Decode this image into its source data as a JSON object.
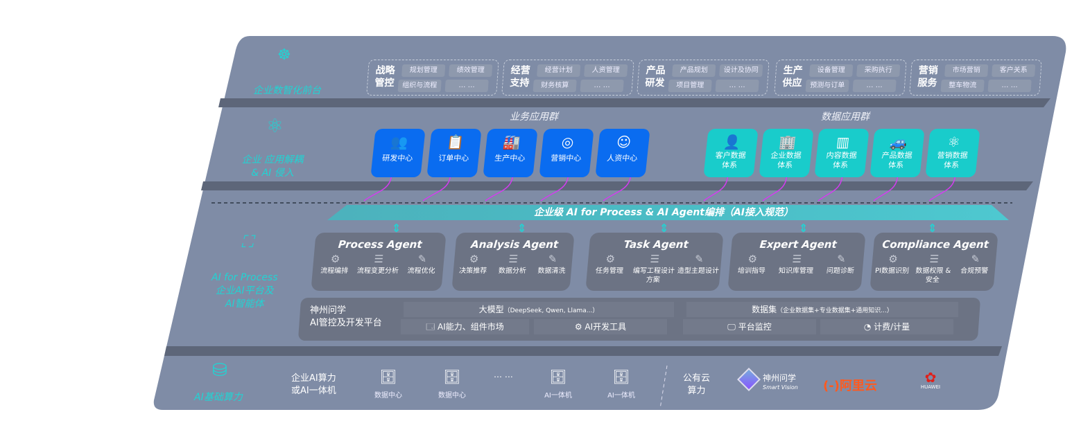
{
  "layers": {
    "front": "企业数智化前台",
    "apps": "企业 应用解耦 & AI 侵入",
    "ai": {
      "l1": "AI for Process",
      "l2": "企业AI平台及",
      "l3": "AI智能体"
    },
    "infra": "AI基础算力"
  },
  "front_groups": [
    {
      "title": "战略管控",
      "items": [
        "规划管理",
        "绩效管理",
        "组织与流程",
        "… …"
      ]
    },
    {
      "title": "经营支持",
      "items": [
        "经营计划",
        "人资管理",
        "财务核算",
        "… …"
      ]
    },
    {
      "title": "产品研发",
      "items": [
        "产品规划",
        "设计及协同",
        "项目管理",
        "… …"
      ]
    },
    {
      "title": "生产供应",
      "items": [
        "设备管理",
        "采购执行",
        "预测与订单",
        "… …"
      ]
    },
    {
      "title": "营销服务",
      "items": [
        "市场营销",
        "客户关系",
        "整车物流",
        "… …"
      ]
    }
  ],
  "business_apps": {
    "title": "业务应用群",
    "items": [
      {
        "label": "研发中心",
        "icon": "users-icon"
      },
      {
        "label": "订单中心",
        "icon": "clipboard-icon"
      },
      {
        "label": "生产中心",
        "icon": "factory-icon"
      },
      {
        "label": "营销中心",
        "icon": "target-icon"
      },
      {
        "label": "人资中心",
        "icon": "person-icon"
      }
    ]
  },
  "data_apps": {
    "title": "数据应用群",
    "items": [
      {
        "l1": "客户数据",
        "l2": "体系",
        "icon": "user-icon"
      },
      {
        "l1": "企业数据",
        "l2": "体系",
        "icon": "building-icon"
      },
      {
        "l1": "内容数据",
        "l2": "体系",
        "icon": "books-icon"
      },
      {
        "l1": "产品数据",
        "l2": "体系",
        "icon": "car-icon"
      },
      {
        "l1": "营销数据",
        "l2": "体系",
        "icon": "atom-icon"
      }
    ]
  },
  "banner": "企业级 AI for Process & AI Agent编排（AI接入规范）",
  "agents": [
    {
      "name": "Process Agent",
      "items": [
        "流程编排",
        "流程变更分析",
        "流程优化"
      ]
    },
    {
      "name": "Analysis Agent",
      "items": [
        "决策推荐",
        "数据分析",
        "数据清洗"
      ]
    },
    {
      "name": "Task Agent",
      "items": [
        "任务管理",
        "编写工程设计方案",
        "造型主题设计"
      ]
    },
    {
      "name": "Expert Agent",
      "items": [
        "培训指导",
        "知识库管理",
        "问题诊断"
      ]
    },
    {
      "name": "Compliance Agent",
      "items": [
        "PI数据识别",
        "数据权限 & 安全",
        "合规预警"
      ]
    }
  ],
  "platform": {
    "title1": "神州问学",
    "title2": "AI管控及开发平台",
    "llm": "大模型",
    "llm_note": "（DeepSeek, Qwen, Llama...）",
    "dataset": "数据集",
    "dataset_note": "（企业数据集+专业数据集+通用知识...）",
    "cells": [
      "AI能力、组件市场",
      "AI开发工具",
      "平台监控",
      "计费/计量"
    ]
  },
  "infra": {
    "private_l1": "企业AI算力",
    "private_l2": "或AI一体机",
    "nodes": [
      "数据中心",
      "数据中心",
      "AI一体机",
      "AI一体机"
    ],
    "ellipsis": "… …",
    "public_l1": "公有云",
    "public_l2": "算力",
    "vendors": {
      "sv_cn": "神州问学",
      "sv_en": "Smart Vision",
      "aliyun": "阿里云",
      "huawei": "HUAWEI"
    }
  },
  "colors": {
    "panel": "#7f8ca6",
    "blue": "#0a6cf0",
    "teal": "#19cccb",
    "accent": "#22d3d3",
    "arrow": "#d43cf0",
    "aliyun": "#ff5a1f",
    "huawei": "#e0201a"
  }
}
